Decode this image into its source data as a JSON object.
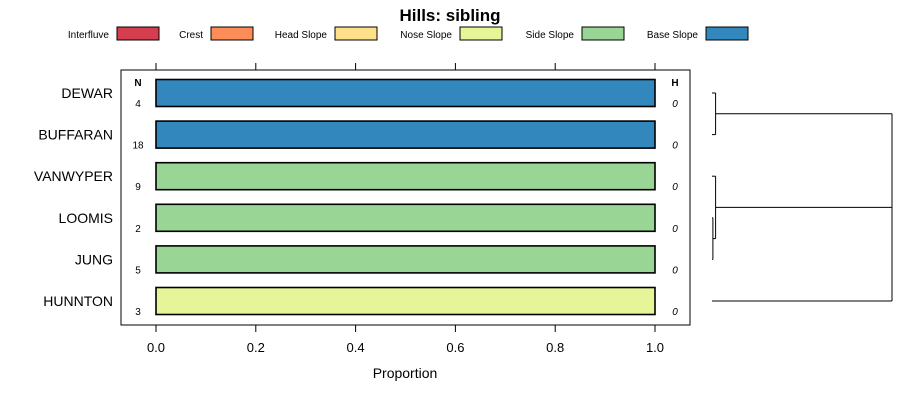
{
  "chart_data": {
    "type": "bar",
    "orientation": "horizontal-stacked",
    "title": "Hills: sibling",
    "xlabel": "Proportion",
    "ylabel": "",
    "xlim": [
      0,
      1
    ],
    "xticks": [
      "0.0",
      "0.2",
      "0.4",
      "0.6",
      "0.8",
      "1.0"
    ],
    "n_header": "N",
    "h_header": "H",
    "legend": [
      {
        "name": "Interfluve",
        "color": "#d53e4f"
      },
      {
        "name": "Crest",
        "color": "#fc8d59"
      },
      {
        "name": "Head Slope",
        "color": "#fee08b"
      },
      {
        "name": "Nose Slope",
        "color": "#e6f598"
      },
      {
        "name": "Side Slope",
        "color": "#99d594"
      },
      {
        "name": "Base Slope",
        "color": "#3288bd"
      }
    ],
    "categories": [
      "DEWAR",
      "BUFFARAN",
      "VANWYPER",
      "LOOMIS",
      "JUNG",
      "HUNNTON"
    ],
    "n": [
      "4",
      "18",
      "9",
      "2",
      "5",
      "3"
    ],
    "h": [
      "0",
      "0",
      "0",
      "0",
      "0",
      "0"
    ],
    "series": [
      {
        "name": "Interfluve",
        "values": [
          0,
          0,
          0,
          0,
          0,
          0
        ]
      },
      {
        "name": "Crest",
        "values": [
          0,
          0,
          0,
          0,
          0,
          0
        ]
      },
      {
        "name": "Head Slope",
        "values": [
          0,
          0,
          0,
          0,
          0,
          0
        ]
      },
      {
        "name": "Nose Slope",
        "values": [
          0,
          0,
          0,
          0,
          0,
          1
        ]
      },
      {
        "name": "Side Slope",
        "values": [
          0,
          0,
          1,
          1,
          1,
          0
        ]
      },
      {
        "name": "Base Slope",
        "values": [
          1,
          1,
          0,
          0,
          0,
          0
        ]
      }
    ],
    "dendrogram": {
      "note": "hierarchical clustering of rows by proportion dissimilarity",
      "merges": [
        {
          "members": [
            "DEWAR",
            "BUFFARAN"
          ],
          "height": 0.02
        },
        {
          "members": [
            "LOOMIS",
            "JUNG"
          ],
          "height": 0.005
        },
        {
          "members": [
            "VANWYPER",
            "LOOMIS",
            "JUNG"
          ],
          "height": 0.02
        },
        {
          "members": [
            "HUNNTON",
            "VANWYPER",
            "LOOMIS",
            "JUNG"
          ],
          "height": 1.0
        },
        {
          "members": [
            "DEWAR",
            "BUFFARAN",
            "HUNNTON",
            "VANWYPER",
            "LOOMIS",
            "JUNG"
          ],
          "height": 1.0
        }
      ]
    }
  }
}
